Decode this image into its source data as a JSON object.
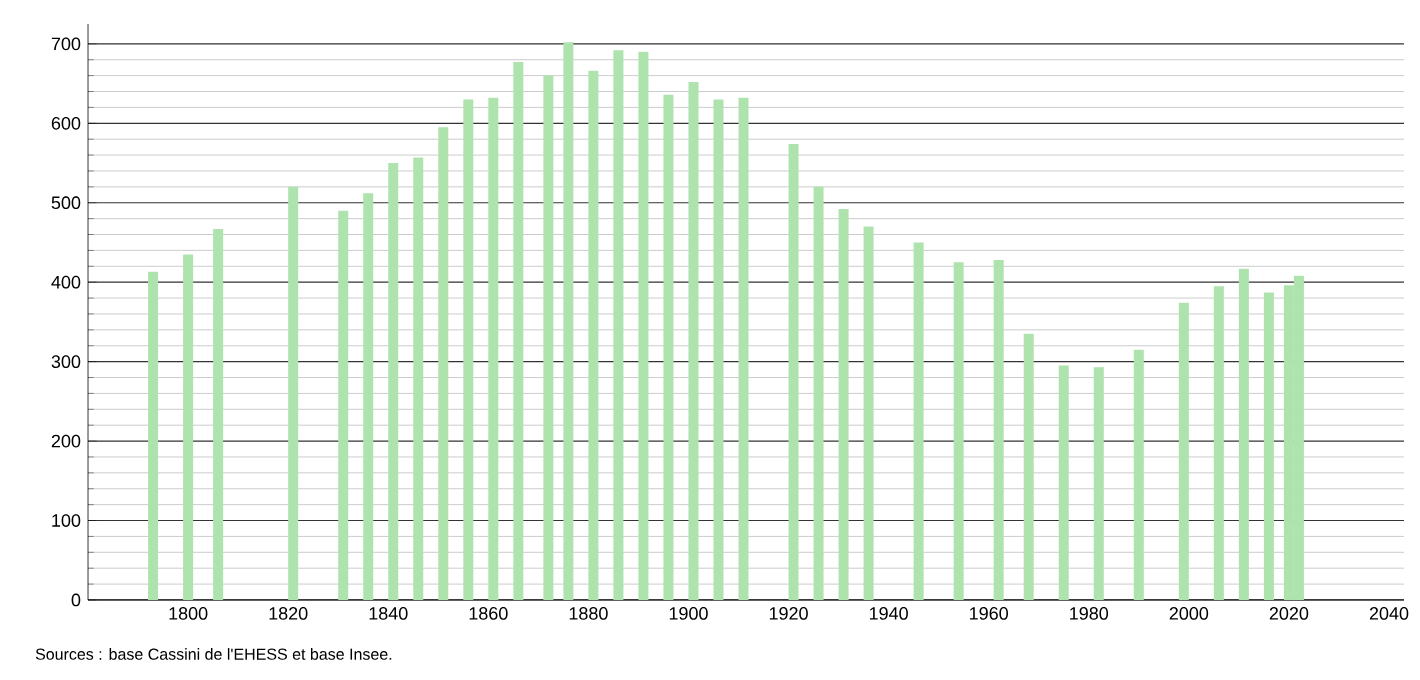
{
  "chart_data": {
    "type": "bar",
    "x": [
      1793,
      1800,
      1806,
      1821,
      1831,
      1836,
      1841,
      1846,
      1851,
      1856,
      1861,
      1866,
      1872,
      1876,
      1881,
      1886,
      1891,
      1896,
      1901,
      1906,
      1911,
      1921,
      1926,
      1931,
      1936,
      1946,
      1954,
      1962,
      1968,
      1975,
      1982,
      1990,
      1999,
      2006,
      2011,
      2016,
      2020,
      2022
    ],
    "values": [
      413,
      435,
      467,
      520,
      490,
      512,
      550,
      557,
      595,
      630,
      632,
      677,
      660,
      702,
      666,
      692,
      690,
      636,
      652,
      630,
      632,
      574,
      520,
      492,
      470,
      450,
      425,
      428,
      335,
      295,
      293,
      315,
      374,
      395,
      417,
      387,
      396,
      408
    ],
    "color": "#aee3ae",
    "xlim": [
      1780,
      2043
    ],
    "xticks": [
      1800,
      1820,
      1840,
      1860,
      1880,
      1900,
      1920,
      1940,
      1960,
      1980,
      2000,
      2020,
      2040
    ],
    "ylim": [
      0,
      725
    ],
    "yticks": [
      0,
      100,
      200,
      300,
      400,
      500,
      600,
      700
    ],
    "grid": "y",
    "annotations": [
      "Sources : base Cassini de l'EHESS et base Insee."
    ]
  }
}
